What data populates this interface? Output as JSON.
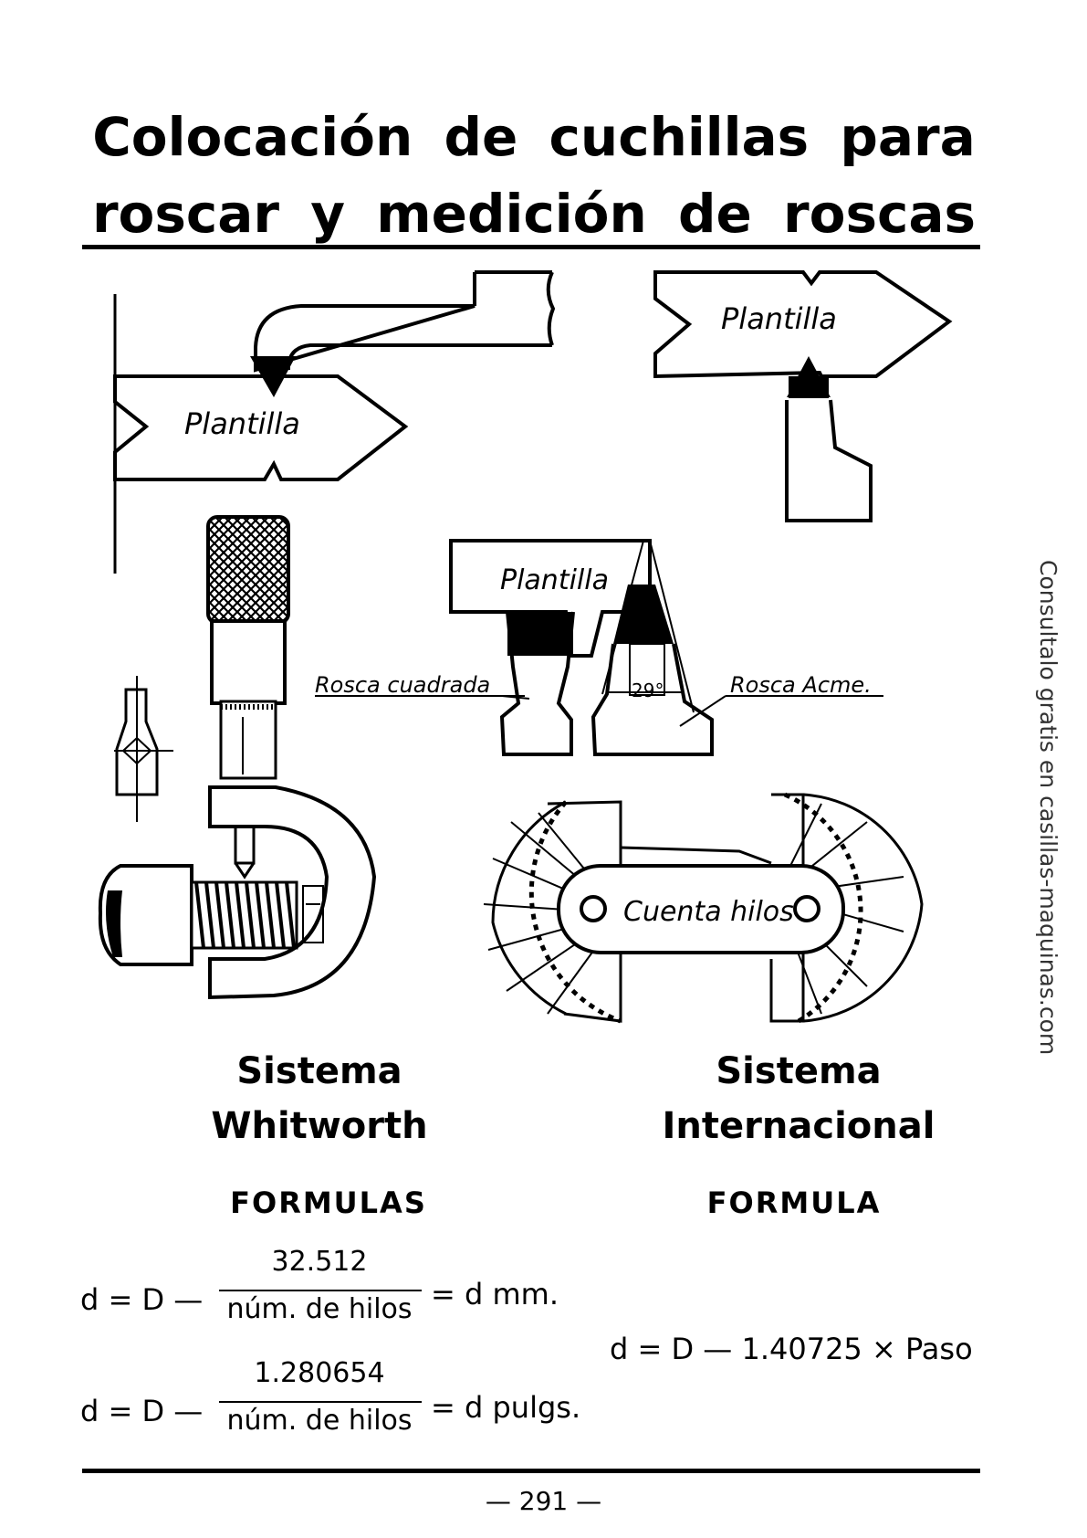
{
  "header": {
    "title_line1": "Colocación de cuchillas para",
    "title_line2": "roscar y medición de roscas"
  },
  "side_note": "Consultalo gratis en casillas-maquinas.com",
  "diagram": {
    "labels": {
      "plantilla_left": "Plantilla",
      "plantilla_right": "Plantilla",
      "plantilla_center": "Plantilla",
      "rosca_cuadrada": "Rosca cuadrada",
      "rosca_acme": "Rosca Acme.",
      "angle": "29°",
      "cuenta_hilos": "Cuenta hilos"
    }
  },
  "sections": {
    "whitworth": {
      "title_line1": "Sistema",
      "title_line2": "Whitworth",
      "formulas_label": "FORMULAS",
      "formula1": {
        "lhs": "d = D —",
        "numerator": "32.512",
        "denominator": "núm. de hilos",
        "rhs": "= d mm."
      },
      "formula2": {
        "lhs": "d = D —",
        "numerator": "1.280654",
        "denominator": "núm. de hilos",
        "rhs": "= d pulgs."
      }
    },
    "internacional": {
      "title_line1": "Sistema",
      "title_line2": "Internacional",
      "formula_label": "FORMULA",
      "formula": "d = D — 1.40725 × Paso"
    }
  },
  "footer": {
    "page_number": "— 291 —"
  }
}
